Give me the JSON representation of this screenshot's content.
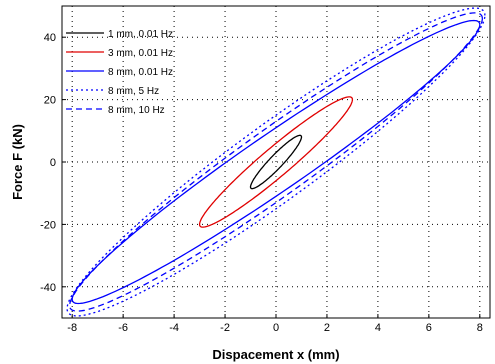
{
  "chart_data": {
    "type": "line",
    "title": "",
    "xlabel": "Dispacement x (mm)",
    "ylabel": "Force F (kN)",
    "xlim": [
      -8.4,
      8.4
    ],
    "ylim": [
      -50,
      50
    ],
    "x_ticks": [
      -8,
      -6,
      -4,
      -2,
      0,
      2,
      4,
      6,
      8
    ],
    "y_ticks": [
      -40,
      -20,
      0,
      20,
      40
    ],
    "x_tick_labels": [
      "-8",
      "-6",
      "-4",
      "-2",
      "0",
      "2",
      "4",
      "6",
      "8"
    ],
    "y_tick_labels": [
      "-40",
      "-20",
      "0",
      "20",
      "40"
    ],
    "grid": true,
    "legend_position": "top-left",
    "series": [
      {
        "name": "1 mm, 0.01 Hz",
        "color": "#000000",
        "dash": "solid",
        "amplitude": 1.0,
        "peak_force": 8.0,
        "loop_width": 3.0
      },
      {
        "name": "3 mm, 0.01 Hz",
        "color": "#e00000",
        "dash": "solid",
        "amplitude": 3.0,
        "peak_force": 20.0,
        "loop_width": 6.0
      },
      {
        "name": "8 mm, 0.01 Hz",
        "color": "#0000ff",
        "dash": "solid",
        "amplitude": 8.0,
        "peak_force": 44.0,
        "loop_width": 11.0
      },
      {
        "name": "8 mm, 5 Hz",
        "color": "#0000ff",
        "dash": "dotted",
        "amplitude": 8.2,
        "peak_force": 47.0,
        "loop_width": 15.0
      },
      {
        "name": "8 mm, 10 Hz",
        "color": "#0000ff",
        "dash": "dashed",
        "amplitude": 8.1,
        "peak_force": 46.0,
        "loop_width": 13.0
      }
    ]
  }
}
